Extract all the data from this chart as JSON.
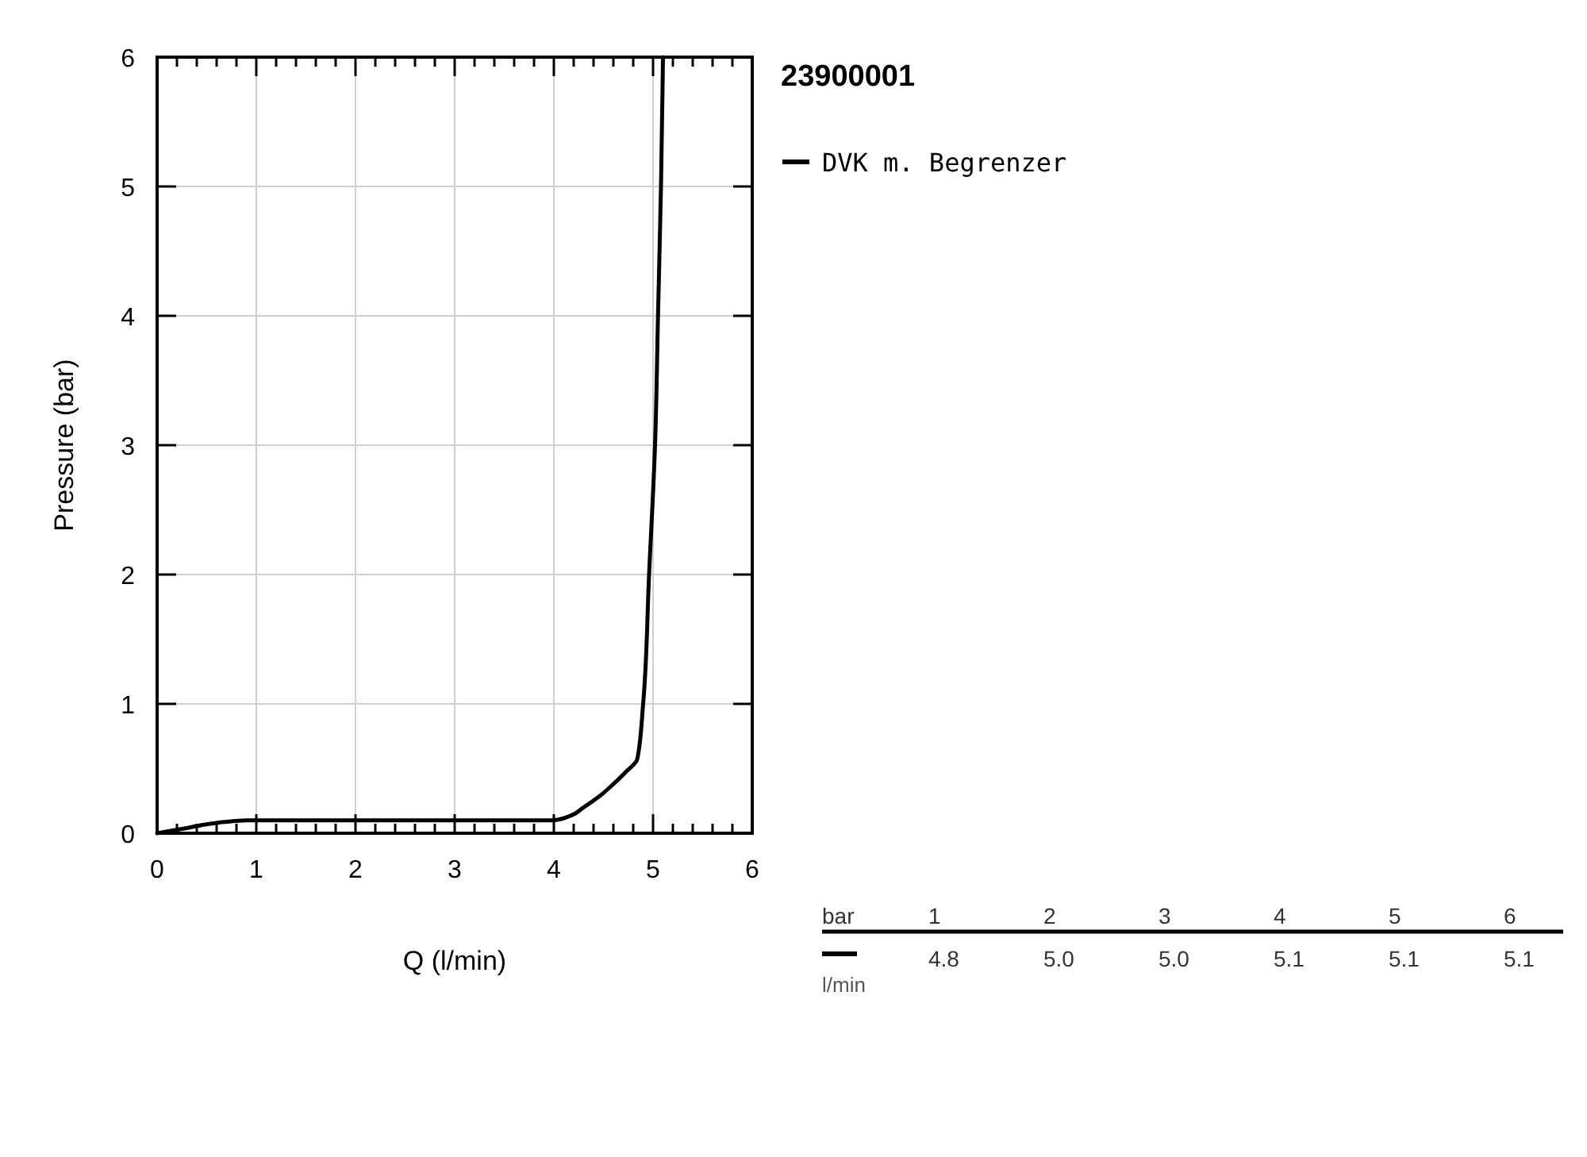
{
  "chart_data": {
    "type": "line",
    "title": "23900001",
    "xlabel": "Q (l/min)",
    "ylabel": "Pressure (bar)",
    "xlim": [
      0,
      6
    ],
    "ylim": [
      0,
      6
    ],
    "xticks": [
      0,
      {
        "value": 0.2,
        "label": null
      },
      {
        "value": 0.4,
        "label": null
      },
      {
        "value": 0.6,
        "label": null
      },
      {
        "value": 0.8,
        "label": null
      },
      1,
      {
        "value": 1.2,
        "label": null
      },
      {
        "value": 1.4,
        "label": null
      },
      {
        "value": 1.6,
        "label": null
      },
      {
        "value": 1.8,
        "label": null
      },
      2,
      {
        "value": 2.2,
        "label": null
      },
      {
        "value": 2.4,
        "label": null
      },
      {
        "value": 2.6,
        "label": null
      },
      {
        "value": 2.8,
        "label": null
      },
      3,
      {
        "value": 3.2,
        "label": null
      },
      {
        "value": 3.4,
        "label": null
      },
      {
        "value": 3.6,
        "label": null
      },
      {
        "value": 3.8,
        "label": null
      },
      4,
      {
        "value": 4.2,
        "label": null
      },
      {
        "value": 4.4,
        "label": null
      },
      {
        "value": 4.6,
        "label": null
      },
      {
        "value": 4.8,
        "label": null
      },
      5,
      {
        "value": 5.2,
        "label": null
      },
      {
        "value": 5.4,
        "label": null
      },
      {
        "value": 5.6,
        "label": null
      },
      {
        "value": 5.8,
        "label": null
      },
      6
    ],
    "yticks": [
      0,
      1,
      2,
      3,
      4,
      5,
      6
    ],
    "grid": true,
    "legend": "top right",
    "series": [
      {
        "name": "DVK m. Begrenzer",
        "color": "#000000",
        "x": [
          0,
          0.3,
          0.6,
          0.9,
          2,
          3,
          4.0,
          4.15,
          4.3,
          4.45,
          4.6,
          4.72,
          4.84,
          4.9,
          4.96,
          5.02,
          5.05,
          5.08,
          5.1
        ],
        "values": [
          0,
          0.04,
          0.08,
          0.1,
          0.1,
          0.1,
          0.1,
          0.13,
          0.2,
          0.28,
          0.38,
          0.47,
          0.57,
          1.0,
          2.0,
          3.0,
          4.0,
          5.0,
          6.0
        ]
      }
    ],
    "annotations": [
      "bar",
      "1",
      "2",
      "3",
      "4",
      "5",
      "6",
      "4.8",
      "5.0",
      "5.0",
      "5.1",
      "5.1",
      "5.1",
      "l/min"
    ]
  }
}
